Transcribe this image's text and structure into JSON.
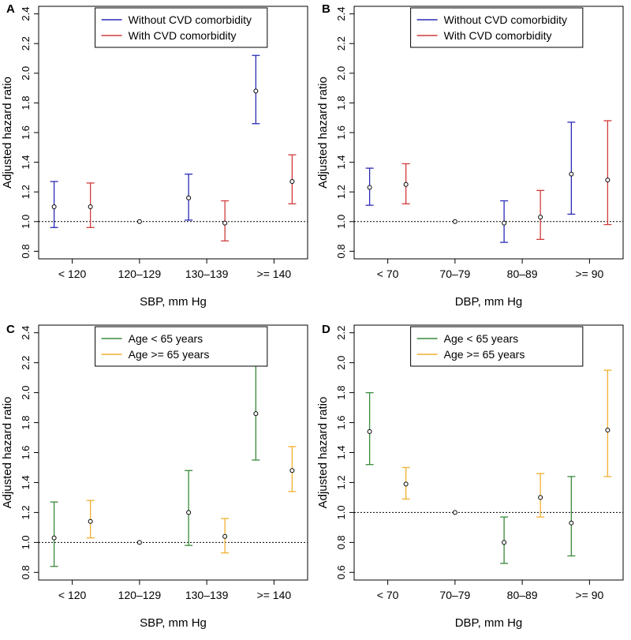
{
  "chart_data": [
    {
      "panel": "A",
      "type": "errorbar",
      "categories": [
        "< 120",
        "120–129",
        "130–139",
        ">= 140"
      ],
      "xlabel": "SBP, mm Hg",
      "ylabel": "Adjusted hazard ratio",
      "ylim": [
        0.8,
        2.4
      ],
      "yticks": [
        "0.8",
        "1.0",
        "1.2",
        "1.4",
        "1.6",
        "1.8",
        "2.0",
        "2.2",
        "2.4"
      ],
      "reference_line": 1.0,
      "reference_category": "120–129",
      "legend_position": "top-center",
      "series": [
        {
          "name": "Without CVD comorbidity",
          "color": "#2b2bb8",
          "values": [
            1.1,
            null,
            1.16,
            1.88
          ],
          "lower": [
            0.96,
            null,
            1.01,
            1.66
          ],
          "upper": [
            1.27,
            null,
            1.32,
            2.12
          ]
        },
        {
          "name": "With CVD comorbidity",
          "color": "#d13b3b",
          "values": [
            1.1,
            null,
            0.99,
            1.27
          ],
          "lower": [
            0.96,
            null,
            0.87,
            1.12
          ],
          "upper": [
            1.26,
            null,
            1.14,
            1.45
          ]
        }
      ]
    },
    {
      "panel": "B",
      "type": "errorbar",
      "categories": [
        "< 70",
        "70–79",
        "80–89",
        ">= 90"
      ],
      "xlabel": "DBP, mm Hg",
      "ylabel": "Adjusted hazard ratio",
      "ylim": [
        0.8,
        2.4
      ],
      "yticks": [
        "0.8",
        "1.0",
        "1.2",
        "1.4",
        "1.6",
        "1.8",
        "2.0",
        "2.2",
        "2.4"
      ],
      "reference_line": 1.0,
      "reference_category": "70–79",
      "legend_position": "top-center",
      "series": [
        {
          "name": "Without CVD comorbidity",
          "color": "#2b2bb8",
          "values": [
            1.23,
            null,
            0.99,
            1.32
          ],
          "lower": [
            1.11,
            null,
            0.86,
            1.05
          ],
          "upper": [
            1.36,
            null,
            1.14,
            1.67
          ]
        },
        {
          "name": "With CVD comorbidity",
          "color": "#d13b3b",
          "values": [
            1.25,
            null,
            1.03,
            1.28
          ],
          "lower": [
            1.12,
            null,
            0.88,
            0.98
          ],
          "upper": [
            1.39,
            null,
            1.21,
            1.68
          ]
        }
      ]
    },
    {
      "panel": "C",
      "type": "errorbar",
      "categories": [
        "< 120",
        "120–129",
        "130–139",
        ">= 140"
      ],
      "xlabel": "SBP, mm Hg",
      "ylabel": "Adjusted hazard ratio",
      "ylim": [
        0.8,
        2.4
      ],
      "yticks": [
        "0.8",
        "1.0",
        "1.2",
        "1.4",
        "1.6",
        "1.8",
        "2.0",
        "2.2",
        "2.4"
      ],
      "reference_line": 1.0,
      "reference_category": "120–129",
      "legend_position": "top-center",
      "series": [
        {
          "name": "Age < 65 years",
          "color": "#3a8a3a",
          "values": [
            1.03,
            null,
            1.2,
            1.86
          ],
          "lower": [
            0.84,
            null,
            0.98,
            1.55
          ],
          "upper": [
            1.27,
            null,
            1.48,
            2.25
          ]
        },
        {
          "name": "Age >= 65 years",
          "color": "#f0b030",
          "values": [
            1.14,
            null,
            1.04,
            1.48
          ],
          "lower": [
            1.03,
            null,
            0.93,
            1.34
          ],
          "upper": [
            1.28,
            null,
            1.16,
            1.64
          ]
        }
      ]
    },
    {
      "panel": "D",
      "type": "errorbar",
      "categories": [
        "< 70",
        "70–79",
        "80–89",
        ">= 90"
      ],
      "xlabel": "DBP, mm Hg",
      "ylabel": "Adjusted hazard ratio",
      "ylim": [
        0.6,
        2.2
      ],
      "yticks": [
        "0.6",
        "0.8",
        "1.0",
        "1.2",
        "1.4",
        "1.6",
        "1.8",
        "2.0",
        "2.2"
      ],
      "reference_line": 1.0,
      "reference_category": "70–79",
      "legend_position": "top-center",
      "series": [
        {
          "name": "Age < 65 years",
          "color": "#3a8a3a",
          "values": [
            1.54,
            null,
            0.8,
            0.93
          ],
          "lower": [
            1.32,
            null,
            0.66,
            0.71
          ],
          "upper": [
            1.8,
            null,
            0.97,
            1.24
          ]
        },
        {
          "name": "Age >= 65 years",
          "color": "#f0b030",
          "values": [
            1.19,
            null,
            1.1,
            1.55
          ],
          "lower": [
            1.09,
            null,
            0.97,
            1.24
          ],
          "upper": [
            1.3,
            null,
            1.26,
            1.95
          ]
        }
      ]
    }
  ]
}
